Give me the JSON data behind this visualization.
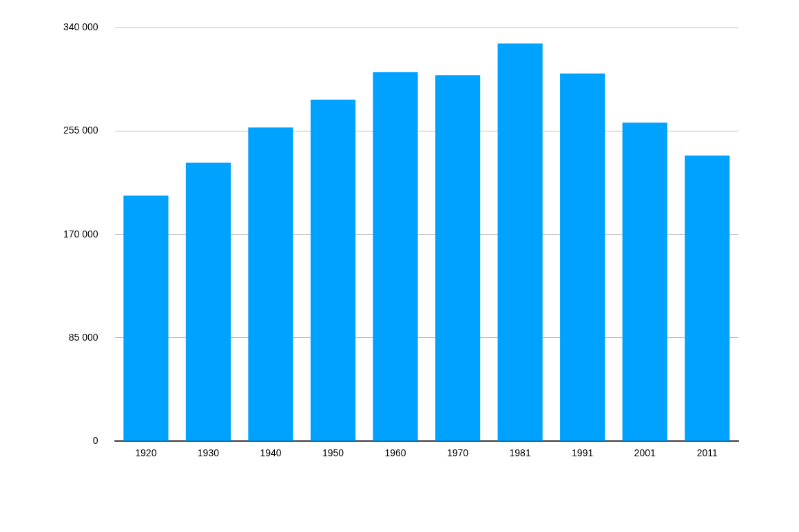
{
  "chart_data": {
    "type": "bar",
    "categories": [
      "1920",
      "1930",
      "1940",
      "1950",
      "1960",
      "1970",
      "1981",
      "1991",
      "2001",
      "2011"
    ],
    "values": [
      202000,
      229000,
      258000,
      281000,
      303500,
      301000,
      327000,
      302500,
      262000,
      235000
    ],
    "color": "#00a2ff",
    "ylim": [
      0,
      340000
    ],
    "yticks": [
      {
        "value": 0,
        "label": "0"
      },
      {
        "value": 85000,
        "label": "85 000"
      },
      {
        "value": 170000,
        "label": "170 000"
      },
      {
        "value": 255000,
        "label": "255 000"
      },
      {
        "value": 340000,
        "label": "340 000"
      }
    ],
    "grid": "y"
  }
}
